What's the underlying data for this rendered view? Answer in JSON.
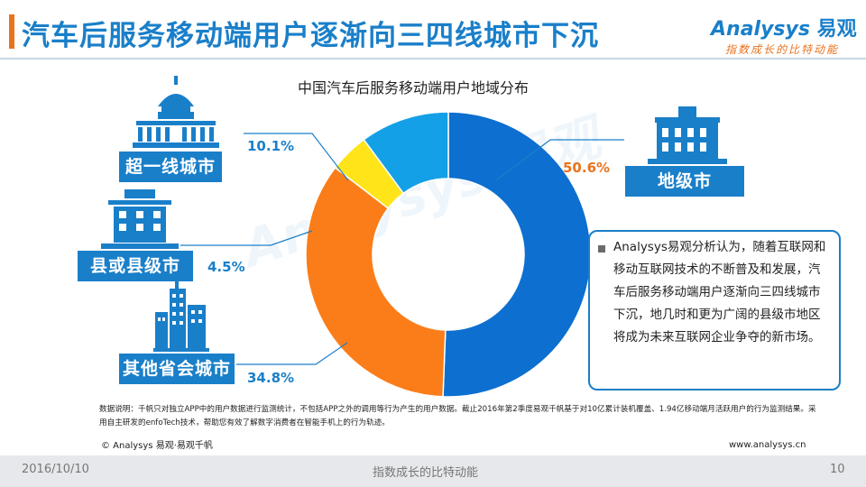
{
  "header": {
    "title": "汽车后服务移动端用户逐渐向三四线城市下沉",
    "logo_word": "Analysys",
    "logo_cn": "易观",
    "logo_slogan": "指数成长的比特动能"
  },
  "colors": {
    "accent_blue": "#1a7fc9",
    "title_blue": "#1a7fc9",
    "title_bar_orange": "#e8731f"
  },
  "chart_data": {
    "type": "pie",
    "title": "中国汽车后服务移动端用户地域分布",
    "donut": true,
    "slices": [
      {
        "label": "地级市",
        "value": 50.6,
        "value_label": "50.6%",
        "color": "#0d6fcf",
        "icon": "town-hall-icon",
        "label_color": "#e8731f"
      },
      {
        "label": "其他省会城市",
        "value": 34.8,
        "value_label": "34.8%",
        "color": "#fb7d19",
        "icon": "tower-building-icon",
        "label_color": "#1a7fc9"
      },
      {
        "label": "县或县级市",
        "value": 4.5,
        "value_label": "4.5%",
        "color": "#ffe41a",
        "icon": "office-building-icon",
        "label_color": "#1a7fc9"
      },
      {
        "label": "超一线城市",
        "value": 10.1,
        "value_label": "10.1%",
        "color": "#14a0e6",
        "icon": "capitol-icon",
        "label_color": "#1a7fc9"
      }
    ]
  },
  "analysis": {
    "text": "Analysys易观分析认为，随着互联网和移动互联网技术的不断普及和发展，汽车后服务移动端用户逐渐向三四线城市下沉，地几时和更为广阔的县级市地区将成为未来互联网企业争夺的新市场。"
  },
  "note": {
    "text": "数据说明：千帆只对独立APP中的用户数据进行监测统计，不包括APP之外的调用等行为产生的用户数据。截止2016年第2季度易观千帆基于对10亿累计装机覆盖、1.94亿移动端月活跃用户的行为监测结果。采用自主研发的enfoTech技术，帮助您有效了解数字消费者在智能手机上的行为轨迹。"
  },
  "copyright": "© Analysys 易观·易观千帆",
  "website": "www.analysys.cn",
  "footer": {
    "date": "2016/10/10",
    "slogan": "指数成长的比特动能",
    "page": "10"
  }
}
